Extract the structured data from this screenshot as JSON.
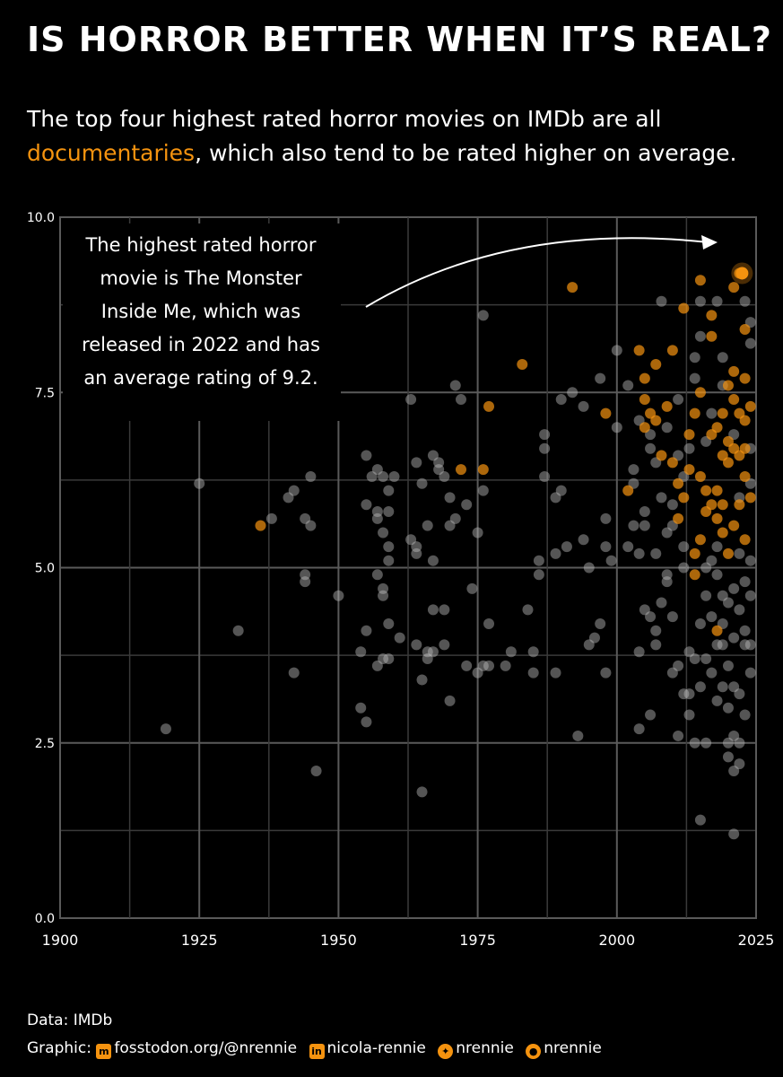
{
  "title": "IS HORROR BETTER WHEN IT’S REAL?",
  "subtitle": {
    "line1": "The top four highest rated horror movies on IMDb are all",
    "highlight": "documentaries",
    "line2_rest": ", which also tend to be rated higher on average."
  },
  "annotation": "The highest rated horror movie is The Monster Inside Me, which was released in 2022 and has an average rating of 9.2.",
  "caption": {
    "data_line": "Data: IMDb",
    "graphic_prefix": "Graphic:",
    "mastodon": "fosstodon.org/@nrennie",
    "linkedin": "nicola-rennie",
    "bluesky": "nrennie",
    "github": "nrennie"
  },
  "colors": {
    "background": "#000000",
    "documentary": "#f5930f",
    "other": "#bdbdbd",
    "grid": "#555555"
  },
  "chart_data": {
    "type": "scatter",
    "xlim": [
      1900,
      2025
    ],
    "ylim": [
      0,
      10
    ],
    "x_ticks": [
      "1900",
      "1925",
      "1950",
      "1975",
      "2000",
      "2025"
    ],
    "y_ticks": [
      "0.0",
      "2.5",
      "5.0",
      "7.5",
      "10.0"
    ],
    "grid": true,
    "series": [
      {
        "key": "documentary",
        "points": [
          [
            1936,
            5.6
          ],
          [
            1972,
            6.4
          ],
          [
            1976,
            6.4
          ],
          [
            1977,
            7.3
          ],
          [
            1983,
            7.9
          ],
          [
            1992,
            9.0
          ],
          [
            1998,
            7.2
          ],
          [
            2002,
            6.1
          ],
          [
            2004,
            8.1
          ],
          [
            2005,
            7.7
          ],
          [
            2005,
            7.4
          ],
          [
            2005,
            7.0
          ],
          [
            2006,
            7.2
          ],
          [
            2007,
            7.9
          ],
          [
            2007,
            7.1
          ],
          [
            2008,
            6.6
          ],
          [
            2009,
            7.3
          ],
          [
            2010,
            8.1
          ],
          [
            2010,
            6.5
          ],
          [
            2011,
            6.2
          ],
          [
            2011,
            5.7
          ],
          [
            2012,
            8.7
          ],
          [
            2012,
            6.0
          ],
          [
            2013,
            6.9
          ],
          [
            2013,
            6.4
          ],
          [
            2014,
            7.2
          ],
          [
            2014,
            5.2
          ],
          [
            2014,
            4.9
          ],
          [
            2015,
            9.1
          ],
          [
            2015,
            7.5
          ],
          [
            2015,
            6.3
          ],
          [
            2015,
            5.4
          ],
          [
            2016,
            6.1
          ],
          [
            2016,
            5.8
          ],
          [
            2017,
            8.6
          ],
          [
            2017,
            8.3
          ],
          [
            2017,
            6.9
          ],
          [
            2017,
            5.9
          ],
          [
            2018,
            4.1
          ],
          [
            2018,
            7.0
          ],
          [
            2018,
            6.1
          ],
          [
            2018,
            5.7
          ],
          [
            2019,
            7.2
          ],
          [
            2019,
            6.6
          ],
          [
            2019,
            5.9
          ],
          [
            2019,
            5.5
          ],
          [
            2020,
            7.6
          ],
          [
            2020,
            6.8
          ],
          [
            2020,
            6.5
          ],
          [
            2020,
            5.2
          ],
          [
            2021,
            9.0
          ],
          [
            2021,
            7.8
          ],
          [
            2021,
            7.4
          ],
          [
            2021,
            6.7
          ],
          [
            2021,
            5.6
          ],
          [
            2022,
            9.2
          ],
          [
            2022,
            7.2
          ],
          [
            2022,
            6.6
          ],
          [
            2022,
            5.9
          ],
          [
            2023,
            8.4
          ],
          [
            2023,
            7.7
          ],
          [
            2023,
            7.1
          ],
          [
            2023,
            6.7
          ],
          [
            2023,
            6.3
          ],
          [
            2023,
            5.4
          ],
          [
            2024,
            7.3
          ],
          [
            2024,
            6.0
          ]
        ]
      },
      {
        "key": "other",
        "points": [
          [
            1919,
            2.7
          ],
          [
            1925,
            6.2
          ],
          [
            1932,
            4.1
          ],
          [
            1938,
            5.7
          ],
          [
            1941,
            6.0
          ],
          [
            1942,
            6.1
          ],
          [
            1942,
            3.5
          ],
          [
            1944,
            4.8
          ],
          [
            1944,
            5.7
          ],
          [
            1944,
            4.9
          ],
          [
            1945,
            5.6
          ],
          [
            1945,
            6.3
          ],
          [
            1946,
            2.1
          ],
          [
            1950,
            4.6
          ],
          [
            1954,
            3.0
          ],
          [
            1954,
            3.8
          ],
          [
            1955,
            2.8
          ],
          [
            1955,
            6.6
          ],
          [
            1955,
            4.1
          ],
          [
            1955,
            5.9
          ],
          [
            1956,
            6.3
          ],
          [
            1957,
            6.4
          ],
          [
            1957,
            5.7
          ],
          [
            1957,
            4.9
          ],
          [
            1957,
            3.6
          ],
          [
            1957,
            5.8
          ],
          [
            1958,
            3.7
          ],
          [
            1958,
            4.7
          ],
          [
            1958,
            4.6
          ],
          [
            1958,
            5.5
          ],
          [
            1958,
            6.3
          ],
          [
            1959,
            5.1
          ],
          [
            1959,
            5.3
          ],
          [
            1959,
            5.8
          ],
          [
            1959,
            6.1
          ],
          [
            1959,
            4.2
          ],
          [
            1959,
            3.7
          ],
          [
            1960,
            6.3
          ],
          [
            1961,
            4.0
          ],
          [
            1963,
            7.4
          ],
          [
            1963,
            5.4
          ],
          [
            1964,
            6.5
          ],
          [
            1964,
            5.3
          ],
          [
            1964,
            5.2
          ],
          [
            1964,
            3.9
          ],
          [
            1965,
            6.2
          ],
          [
            1965,
            3.4
          ],
          [
            1965,
            1.8
          ],
          [
            1966,
            3.8
          ],
          [
            1966,
            3.7
          ],
          [
            1966,
            5.6
          ],
          [
            1967,
            6.6
          ],
          [
            1967,
            4.4
          ],
          [
            1967,
            5.1
          ],
          [
            1967,
            3.8
          ],
          [
            1968,
            6.4
          ],
          [
            1968,
            6.5
          ],
          [
            1969,
            4.4
          ],
          [
            1969,
            3.9
          ],
          [
            1969,
            6.3
          ],
          [
            1970,
            3.1
          ],
          [
            1970,
            6.0
          ],
          [
            1970,
            5.6
          ],
          [
            1971,
            7.6
          ],
          [
            1971,
            5.7
          ],
          [
            1972,
            7.4
          ],
          [
            1973,
            3.6
          ],
          [
            1973,
            5.9
          ],
          [
            1974,
            4.7
          ],
          [
            1975,
            3.5
          ],
          [
            1975,
            5.5
          ],
          [
            1976,
            3.6
          ],
          [
            1976,
            8.6
          ],
          [
            1976,
            6.1
          ],
          [
            1977,
            3.6
          ],
          [
            1977,
            4.2
          ],
          [
            1980,
            3.6
          ],
          [
            1981,
            3.8
          ],
          [
            1984,
            4.4
          ],
          [
            1985,
            3.5
          ],
          [
            1985,
            3.8
          ],
          [
            1986,
            5.1
          ],
          [
            1986,
            4.9
          ],
          [
            1987,
            6.3
          ],
          [
            1987,
            6.7
          ],
          [
            1987,
            6.9
          ],
          [
            1989,
            3.5
          ],
          [
            1989,
            5.2
          ],
          [
            1989,
            6.0
          ],
          [
            1990,
            6.1
          ],
          [
            1990,
            7.4
          ],
          [
            1991,
            5.3
          ],
          [
            1992,
            7.5
          ],
          [
            1993,
            2.6
          ],
          [
            1994,
            5.4
          ],
          [
            1994,
            7.3
          ],
          [
            1995,
            3.9
          ],
          [
            1995,
            5.0
          ],
          [
            1996,
            4.0
          ],
          [
            1997,
            4.2
          ],
          [
            1997,
            7.7
          ],
          [
            1998,
            5.3
          ],
          [
            1998,
            5.7
          ],
          [
            1998,
            3.5
          ],
          [
            1999,
            5.1
          ],
          [
            2000,
            7.0
          ],
          [
            2000,
            8.1
          ],
          [
            2002,
            7.6
          ],
          [
            2002,
            5.3
          ],
          [
            2003,
            6.2
          ],
          [
            2003,
            5.6
          ],
          [
            2003,
            6.4
          ],
          [
            2004,
            2.7
          ],
          [
            2004,
            3.8
          ],
          [
            2004,
            7.1
          ],
          [
            2004,
            5.2
          ],
          [
            2005,
            5.8
          ],
          [
            2005,
            4.4
          ],
          [
            2005,
            5.6
          ],
          [
            2006,
            6.7
          ],
          [
            2006,
            4.3
          ],
          [
            2006,
            6.9
          ],
          [
            2006,
            2.9
          ],
          [
            2007,
            6.5
          ],
          [
            2007,
            4.1
          ],
          [
            2007,
            3.9
          ],
          [
            2007,
            5.2
          ],
          [
            2008,
            4.5
          ],
          [
            2008,
            6.0
          ],
          [
            2008,
            8.8
          ],
          [
            2009,
            4.9
          ],
          [
            2009,
            5.5
          ],
          [
            2009,
            7.0
          ],
          [
            2010,
            3.5
          ],
          [
            2010,
            5.9
          ],
          [
            2010,
            4.3
          ],
          [
            2011,
            3.6
          ],
          [
            2011,
            2.6
          ],
          [
            2011,
            7.4
          ],
          [
            2012,
            3.2
          ],
          [
            2012,
            5.3
          ],
          [
            2012,
            6.3
          ],
          [
            2013,
            3.8
          ],
          [
            2013,
            2.9
          ],
          [
            2013,
            3.2
          ],
          [
            2014,
            8.0
          ],
          [
            2014,
            2.5
          ],
          [
            2014,
            7.7
          ],
          [
            2014,
            3.7
          ],
          [
            2015,
            1.4
          ],
          [
            2015,
            8.3
          ],
          [
            2015,
            8.8
          ],
          [
            2015,
            4.2
          ],
          [
            2015,
            3.3
          ],
          [
            2016,
            3.7
          ],
          [
            2016,
            2.5
          ],
          [
            2016,
            4.6
          ],
          [
            2016,
            5.0
          ],
          [
            2017,
            3.5
          ],
          [
            2017,
            7.2
          ],
          [
            2017,
            4.3
          ],
          [
            2018,
            3.1
          ],
          [
            2018,
            8.8
          ],
          [
            2018,
            4.9
          ],
          [
            2018,
            3.9
          ],
          [
            2019,
            3.3
          ],
          [
            2019,
            8.0
          ],
          [
            2019,
            7.6
          ],
          [
            2019,
            4.2
          ],
          [
            2019,
            3.9
          ],
          [
            2020,
            2.5
          ],
          [
            2020,
            2.3
          ],
          [
            2020,
            3.0
          ],
          [
            2020,
            4.5
          ],
          [
            2020,
            3.6
          ],
          [
            2021,
            1.2
          ],
          [
            2021,
            2.1
          ],
          [
            2021,
            3.3
          ],
          [
            2021,
            4.0
          ],
          [
            2021,
            4.7
          ],
          [
            2021,
            2.6
          ],
          [
            2022,
            2.2
          ],
          [
            2022,
            3.2
          ],
          [
            2022,
            4.4
          ],
          [
            2022,
            5.2
          ],
          [
            2022,
            2.5
          ],
          [
            2023,
            2.9
          ],
          [
            2023,
            3.9
          ],
          [
            2023,
            4.8
          ],
          [
            2023,
            8.8
          ],
          [
            2024,
            3.5
          ],
          [
            2024,
            5.1
          ],
          [
            2024,
            6.2
          ],
          [
            2024,
            4.6
          ],
          [
            2024,
            8.5
          ],
          [
            2024,
            8.2
          ],
          [
            2024,
            6.7
          ],
          [
            2024,
            3.9
          ],
          [
            2023,
            4.1
          ],
          [
            2022,
            6.0
          ],
          [
            2021,
            6.9
          ],
          [
            2016,
            6.8
          ],
          [
            2017,
            5.1
          ],
          [
            2013,
            6.7
          ],
          [
            2012,
            5.0
          ],
          [
            2011,
            6.6
          ],
          [
            2010,
            5.6
          ],
          [
            2009,
            4.8
          ],
          [
            2018,
            5.3
          ],
          [
            2019,
            4.6
          ]
        ]
      }
    ],
    "highlight_point": [
      2022,
      9.2
    ]
  }
}
